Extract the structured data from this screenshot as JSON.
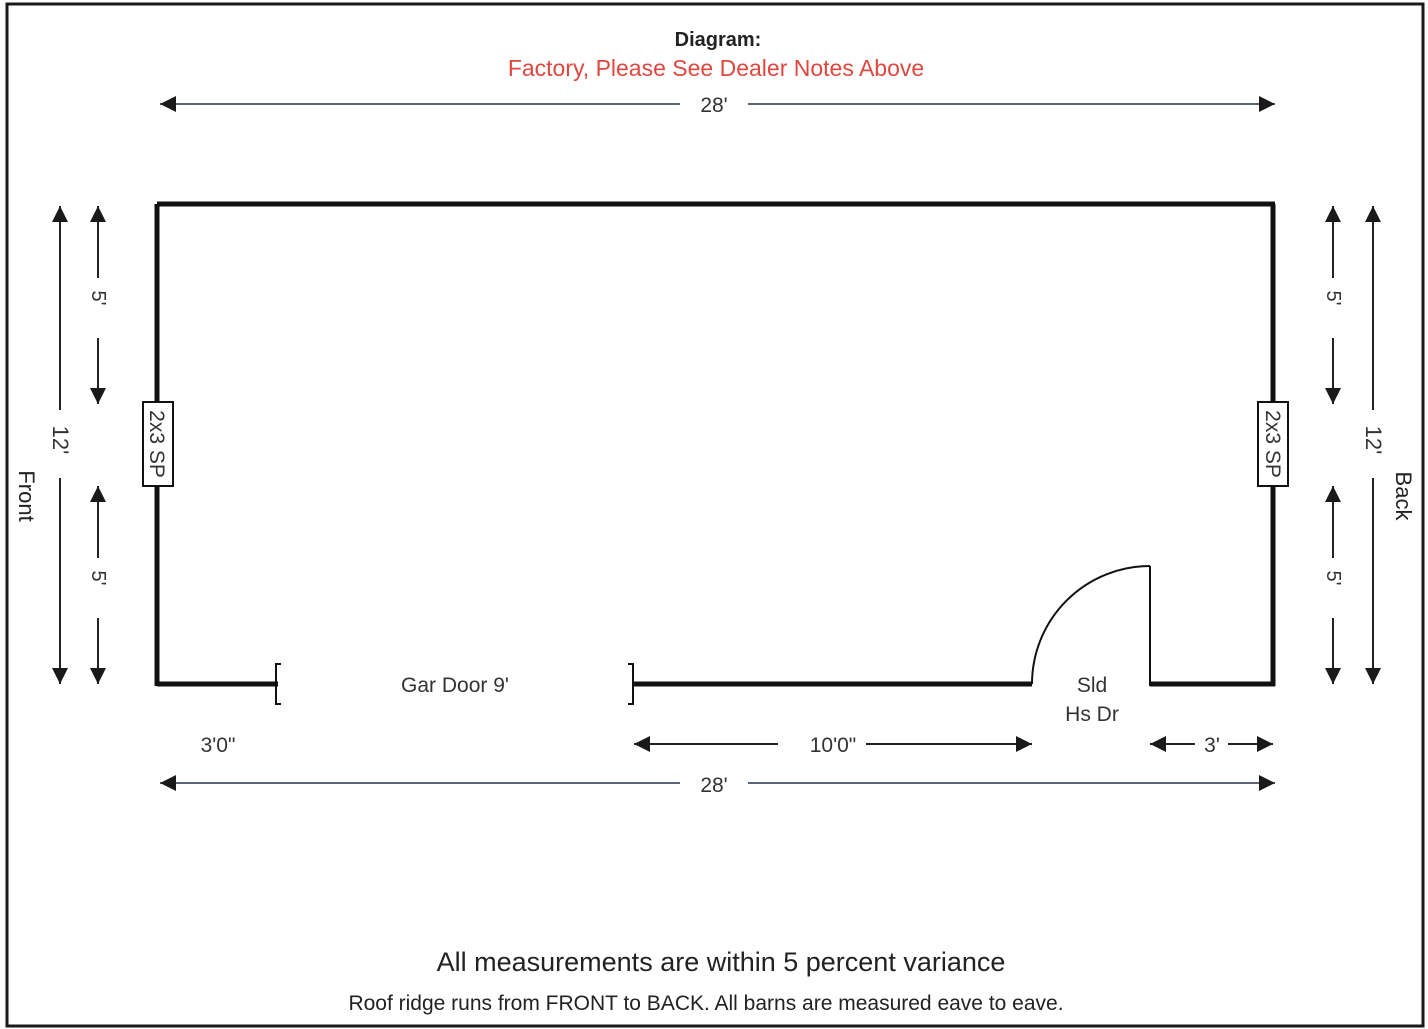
{
  "header": {
    "title": "Diagram:",
    "subtitle": "Factory,  Please See Dealer Notes Above",
    "subtitle_color": "#e0473f"
  },
  "dimensions": {
    "top_width": "28'",
    "bottom_width": "28'",
    "left_height": "12'",
    "right_height": "12'",
    "left_upper": "5'",
    "left_lower": "5'",
    "right_upper": "5'",
    "right_lower": "5'",
    "front_offset": "3'0\"",
    "garage_to_door": "10'0\"",
    "door_to_corner": "3'"
  },
  "labels": {
    "front": "Front",
    "back": "Back",
    "left_window": "2x3 SP",
    "right_window": "2x3 SP",
    "garage_door": "Gar Door 9'",
    "door_line1": "Sld",
    "door_line2": "Hs Dr"
  },
  "footer": {
    "variance_note": "All measurements are within 5 percent variance",
    "ridge_note": "Roof ridge runs from FRONT to BACK. All barns are measured eave to eave."
  },
  "colors": {
    "wall": "#111111",
    "dimension": "#2a2a2a",
    "border": "#1a1a1a"
  }
}
